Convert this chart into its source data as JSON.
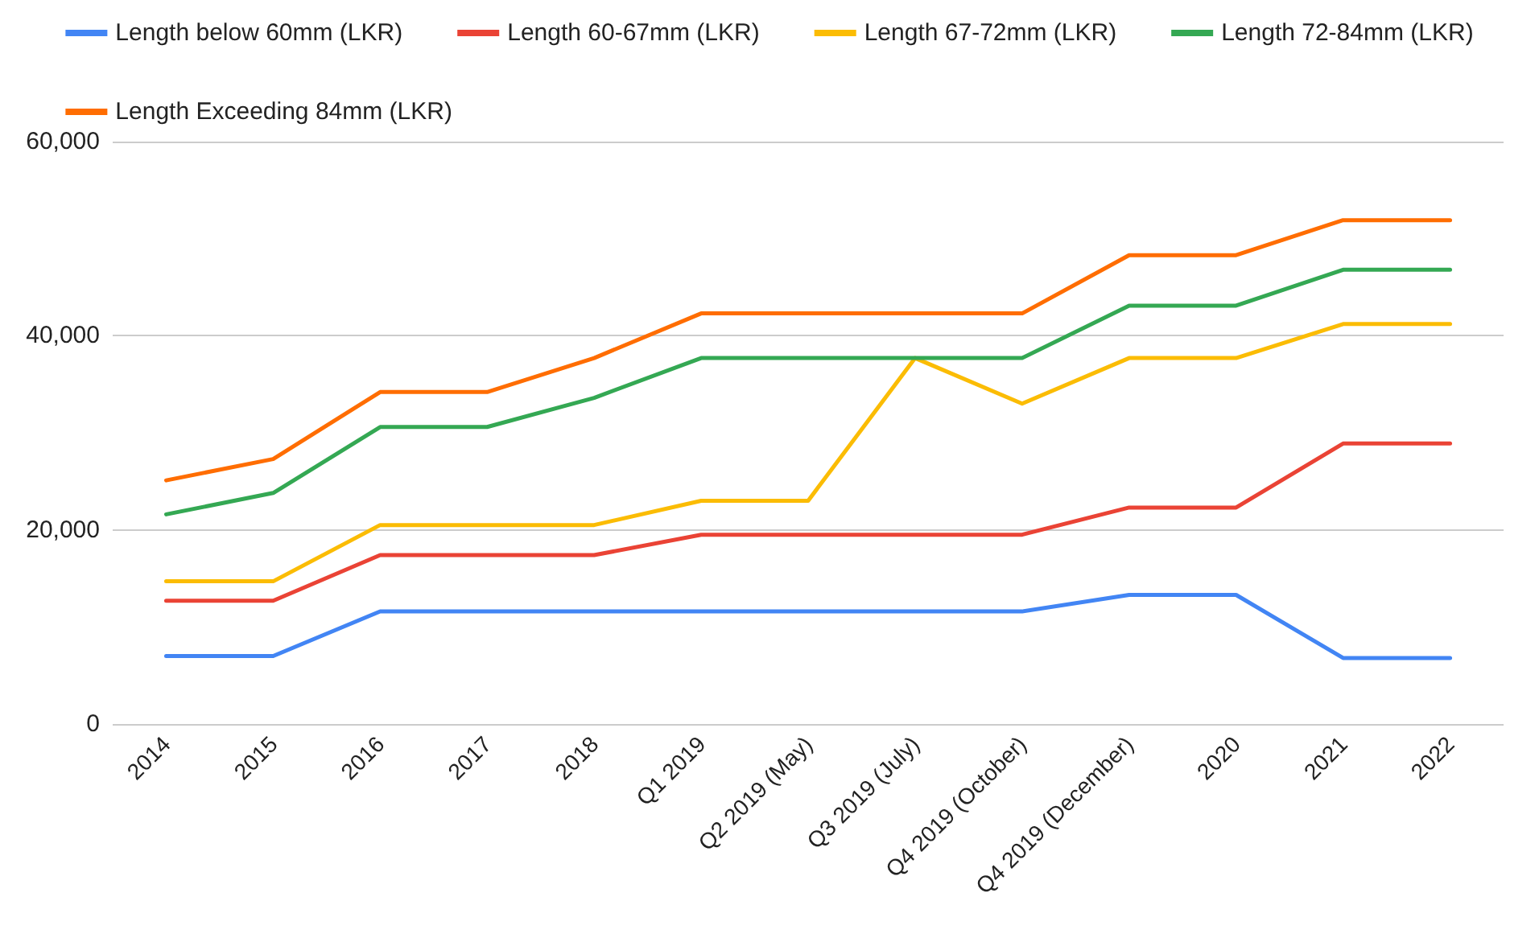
{
  "chart_data": {
    "type": "line",
    "categories": [
      "2014",
      "2015",
      "2016",
      "2017",
      "2018",
      "Q1 2019",
      "Q2 2019 (May)",
      "Q3 2019 (July)",
      "Q4 2019 (October)",
      "Q4 2019 (December)",
      "2020",
      "2021",
      "2022"
    ],
    "series": [
      {
        "name": "Length below 60mm (LKR)",
        "color": "#4285f4",
        "values": [
          7000,
          7000,
          11600,
          11600,
          11600,
          11600,
          11600,
          11600,
          11600,
          13300,
          13300,
          6800,
          6800
        ]
      },
      {
        "name": "Length 60-67mm (LKR)",
        "color": "#ea4335",
        "values": [
          12700,
          12700,
          17400,
          17400,
          17400,
          19500,
          19500,
          19500,
          19500,
          22300,
          22300,
          28900,
          28900
        ]
      },
      {
        "name": "Length 67-72mm (LKR)",
        "color": "#fbbc04",
        "values": [
          14700,
          14700,
          20500,
          20500,
          20500,
          23000,
          23000,
          37700,
          33000,
          37700,
          37700,
          41200,
          41200
        ]
      },
      {
        "name": "Length 72-84mm (LKR)",
        "color": "#34a853",
        "values": [
          21600,
          23800,
          30600,
          30600,
          33600,
          37700,
          37700,
          37700,
          37700,
          43100,
          43100,
          46800,
          46800
        ]
      },
      {
        "name": "Length Exceeding 84mm (LKR)",
        "color": "#ff6d01",
        "values": [
          25100,
          27300,
          34200,
          34200,
          37700,
          42300,
          42300,
          42300,
          42300,
          48300,
          48300,
          51900,
          51900
        ]
      }
    ],
    "ylim": [
      0,
      60000
    ],
    "yticks": [
      {
        "value": 0,
        "label": "0"
      },
      {
        "value": 20000,
        "label": "20,000"
      },
      {
        "value": 40000,
        "label": "40,000"
      },
      {
        "value": 60000,
        "label": "60,000"
      }
    ],
    "grid": "y",
    "legend": "top",
    "marker": "none",
    "line_style": "solid"
  }
}
